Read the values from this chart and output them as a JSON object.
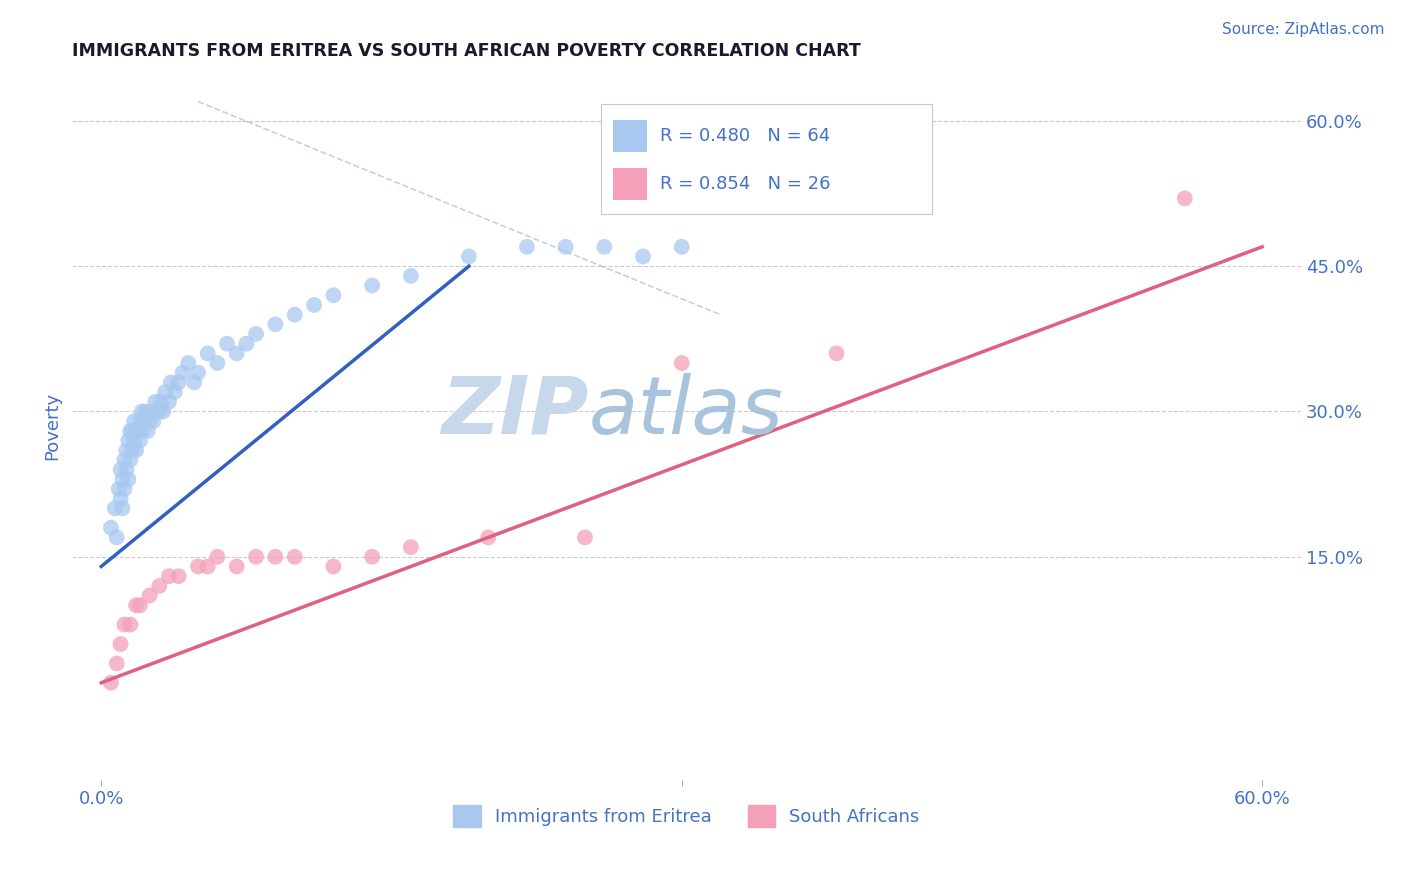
{
  "title": "IMMIGRANTS FROM ERITREA VS SOUTH AFRICAN POVERTY CORRELATION CHART",
  "source": "Source: ZipAtlas.com",
  "ylabel": "Poverty",
  "xlim": [
    0.0,
    0.6
  ],
  "ylim": [
    -0.08,
    0.65
  ],
  "right_ytick_vals": [
    0.0,
    0.15,
    0.3,
    0.45,
    0.6
  ],
  "right_ytick_labels": [
    "",
    "15.0%",
    "30.0%",
    "45.0%",
    "60.0%"
  ],
  "blue_color": "#A8C8F0",
  "pink_color": "#F4A0B8",
  "blue_line_color": "#3060C0",
  "pink_line_color": "#E06080",
  "dash_line_color": "#B0C8D8",
  "watermark_color": "#D0E0F0",
  "title_color": "#1a1a2e",
  "source_color": "#4472C4",
  "tick_label_color": "#4472C4",
  "legend_blue_R": "R = 0.480",
  "legend_blue_N": "N = 64",
  "legend_pink_R": "R = 0.854",
  "legend_pink_N": "N = 26",
  "bottom_label_blue": "Immigrants from Eritrea",
  "bottom_label_pink": "South Africans",
  "blue_scatter_x": [
    0.005,
    0.007,
    0.008,
    0.009,
    0.01,
    0.01,
    0.011,
    0.011,
    0.012,
    0.012,
    0.013,
    0.013,
    0.014,
    0.014,
    0.015,
    0.015,
    0.016,
    0.016,
    0.017,
    0.017,
    0.018,
    0.018,
    0.019,
    0.02,
    0.02,
    0.021,
    0.021,
    0.022,
    0.023,
    0.024,
    0.025,
    0.026,
    0.027,
    0.028,
    0.03,
    0.031,
    0.032,
    0.033,
    0.035,
    0.036,
    0.038,
    0.04,
    0.042,
    0.045,
    0.048,
    0.05,
    0.055,
    0.06,
    0.065,
    0.07,
    0.075,
    0.08,
    0.09,
    0.1,
    0.11,
    0.12,
    0.14,
    0.16,
    0.19,
    0.22,
    0.24,
    0.26,
    0.28,
    0.3
  ],
  "blue_scatter_y": [
    0.18,
    0.2,
    0.17,
    0.22,
    0.21,
    0.24,
    0.2,
    0.23,
    0.22,
    0.25,
    0.24,
    0.26,
    0.23,
    0.27,
    0.25,
    0.28,
    0.26,
    0.28,
    0.27,
    0.29,
    0.26,
    0.28,
    0.28,
    0.27,
    0.29,
    0.28,
    0.3,
    0.29,
    0.3,
    0.28,
    0.29,
    0.3,
    0.29,
    0.31,
    0.3,
    0.31,
    0.3,
    0.32,
    0.31,
    0.33,
    0.32,
    0.33,
    0.34,
    0.35,
    0.33,
    0.34,
    0.36,
    0.35,
    0.37,
    0.36,
    0.37,
    0.38,
    0.39,
    0.4,
    0.41,
    0.42,
    0.43,
    0.44,
    0.46,
    0.47,
    0.47,
    0.47,
    0.46,
    0.47
  ],
  "pink_scatter_x": [
    0.005,
    0.008,
    0.01,
    0.012,
    0.015,
    0.018,
    0.02,
    0.025,
    0.03,
    0.035,
    0.04,
    0.05,
    0.055,
    0.06,
    0.07,
    0.08,
    0.09,
    0.1,
    0.12,
    0.14,
    0.16,
    0.2,
    0.25,
    0.3,
    0.38,
    0.56
  ],
  "pink_scatter_y": [
    0.02,
    0.04,
    0.06,
    0.08,
    0.08,
    0.1,
    0.1,
    0.11,
    0.12,
    0.13,
    0.13,
    0.14,
    0.14,
    0.15,
    0.14,
    0.15,
    0.15,
    0.15,
    0.14,
    0.15,
    0.16,
    0.17,
    0.17,
    0.35,
    0.36,
    0.52
  ],
  "blue_line_x0": 0.0,
  "blue_line_y0": 0.14,
  "blue_line_x1": 0.19,
  "blue_line_y1": 0.45,
  "pink_line_x0": 0.0,
  "pink_line_y0": 0.02,
  "pink_line_x1": 0.6,
  "pink_line_y1": 0.47,
  "dash_line_x0": 0.05,
  "dash_line_y0": 0.62,
  "dash_line_x1": 0.32,
  "dash_line_y1": 0.4
}
